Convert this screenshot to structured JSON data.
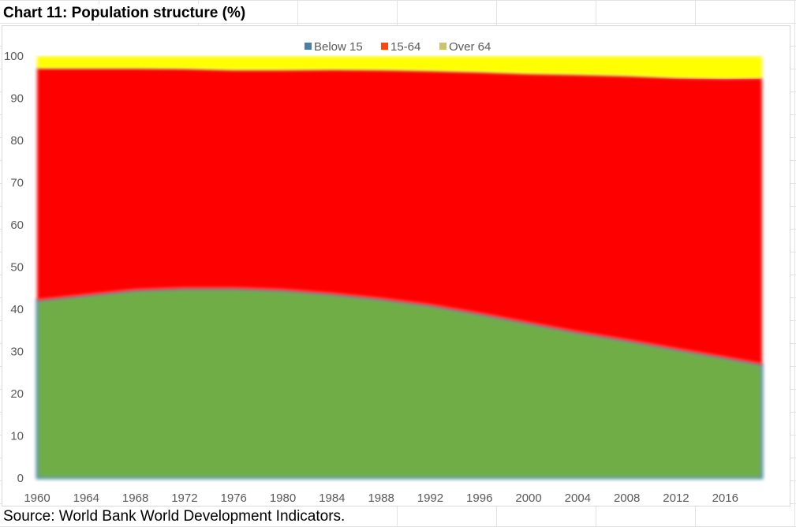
{
  "title": "Chart 11: Population structure (%)",
  "source": "Source: World Bank World Development Indicators.",
  "colors": {
    "below15": "#70ad47",
    "below15_edge": "#5b8fa8",
    "mid": "#ff0000",
    "over64": "#ffff00"
  },
  "chart_data": {
    "type": "area",
    "stacked": true,
    "x": [
      1960,
      1964,
      1968,
      1972,
      1976,
      1980,
      1984,
      1988,
      1992,
      1996,
      2000,
      2004,
      2008,
      2012,
      2016,
      2019
    ],
    "xticks": [
      "1960",
      "1964",
      "1968",
      "1972",
      "1976",
      "1980",
      "1984",
      "1988",
      "1992",
      "1996",
      "2000",
      "2004",
      "2008",
      "2012",
      "2016"
    ],
    "ylim": [
      0,
      100
    ],
    "yticks": [
      "0",
      "10",
      "20",
      "30",
      "40",
      "50",
      "60",
      "70",
      "80",
      "90",
      "100"
    ],
    "series": [
      {
        "name": "Below 15",
        "legend_color": "#4e7fa0",
        "values": [
          42.2,
          43.4,
          44.6,
          45.0,
          45.0,
          44.6,
          43.7,
          42.5,
          41.0,
          39.0,
          36.8,
          34.6,
          32.7,
          30.6,
          28.6,
          27.0
        ]
      },
      {
        "name": "15-64",
        "legend_color": "#f24a12",
        "values": [
          55.0,
          53.8,
          52.6,
          52.1,
          51.8,
          52.2,
          53.2,
          54.3,
          55.6,
          57.3,
          59.1,
          61.1,
          62.7,
          64.3,
          66.1,
          67.8
        ]
      },
      {
        "name": "Over 64",
        "legend_color": "#c9c46f",
        "values": [
          2.8,
          2.8,
          2.8,
          2.9,
          3.2,
          3.2,
          3.1,
          3.2,
          3.4,
          3.7,
          4.1,
          4.3,
          4.6,
          5.1,
          5.3,
          5.2
        ]
      }
    ],
    "legend_position": "top",
    "grid": false
  }
}
